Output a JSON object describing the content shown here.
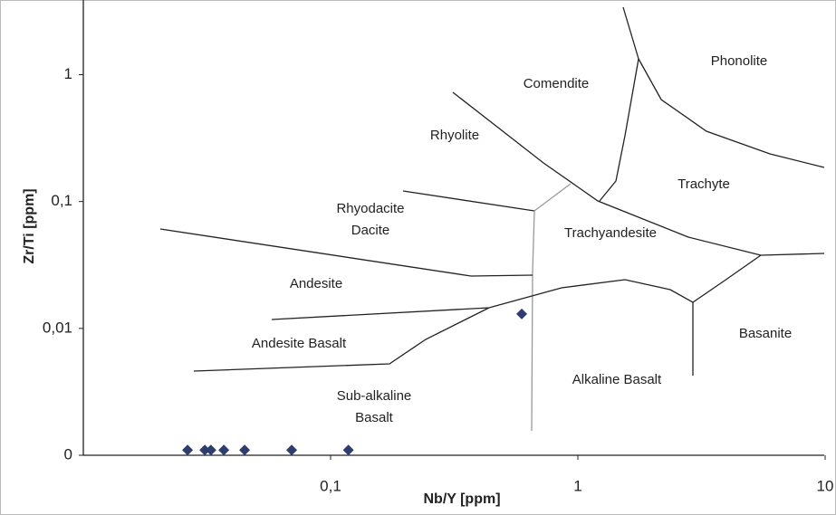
{
  "chart_data": {
    "type": "scatter",
    "x_label": "Nb/Y  [ppm]",
    "y_label": "Zr/Ti  [ppm]",
    "log_x": true,
    "log_y": true,
    "xlim": [
      0.01,
      10
    ],
    "ylim": [
      0.001,
      3.4
    ],
    "xticks": [
      {
        "value": 0.1,
        "label": "0,1"
      },
      1,
      10
    ],
    "yticks": [
      {
        "value": 0.001,
        "label": "0"
      },
      {
        "value": 0.01,
        "label": "0,01"
      },
      {
        "value": 0.1,
        "label": "0,1"
      },
      1
    ],
    "color": "#2c3d6e",
    "x": [
      0.0264,
      0.031,
      0.0328,
      0.037,
      0.0449,
      0.0696,
      0.118,
      0.593
    ],
    "values": [
      0.0011,
      0.0011,
      0.0011,
      0.0011,
      0.0011,
      0.0011,
      0.0011,
      0.013
    ],
    "field_labels": [
      "Phonolite",
      "Comendite",
      "Rhyolite",
      "Trachyte",
      "Rhyodacite",
      "Dacite",
      "Trachyandesite",
      "Andesite",
      "Basanite",
      "Andesite Basalt",
      "Alkaline Basalt",
      "Sub-alkaline",
      "Basalt"
    ]
  }
}
